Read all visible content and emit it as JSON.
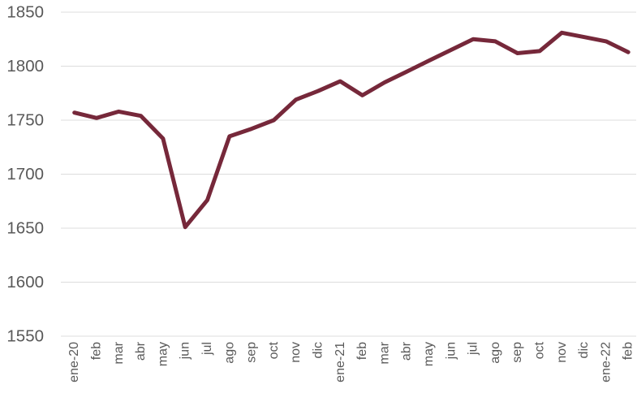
{
  "chart_data": {
    "type": "line",
    "title": "",
    "xlabel": "",
    "ylabel": "",
    "categories": [
      "ene-20",
      "feb",
      "mar",
      "abr",
      "may",
      "jun",
      "jul",
      "ago",
      "sep",
      "oct",
      "nov",
      "dic",
      "ene-21",
      "feb",
      "mar",
      "abr",
      "may",
      "jun",
      "jul",
      "ago",
      "sep",
      "oct",
      "nov",
      "dic",
      "ene-22",
      "feb"
    ],
    "values": [
      1757,
      1752,
      1758,
      1754,
      1733,
      1651,
      1676,
      1735,
      1742,
      1750,
      1769,
      1777,
      1786,
      1773,
      1785,
      1795,
      1805,
      1815,
      1825,
      1823,
      1812,
      1814,
      1831,
      1827,
      1823,
      1813
    ],
    "ylim": [
      1550,
      1850
    ],
    "yticks": [
      "1550",
      "1600",
      "1650",
      "1700",
      "1750",
      "1800",
      "1850"
    ],
    "grid": true,
    "legend": false,
    "colors": {
      "line": "#76283A",
      "gridline": "#DCDCDC",
      "tick_label": "#595959",
      "background": "#FFFFFF"
    },
    "line_width": 5,
    "x_tick_rotation_degrees": 90
  }
}
